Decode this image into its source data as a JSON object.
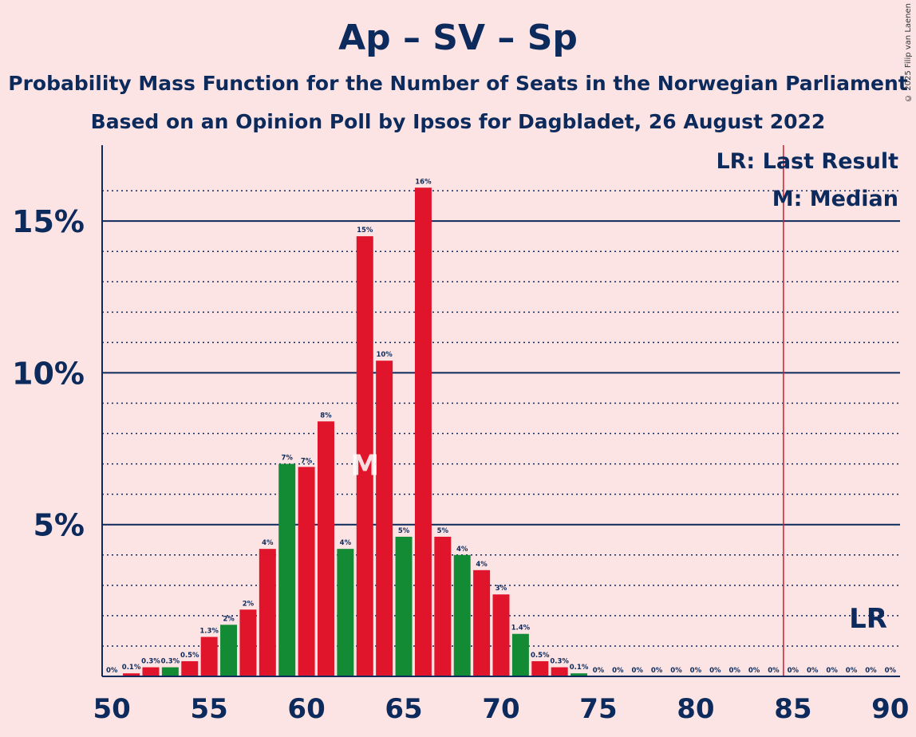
{
  "title": "Ap – SV – Sp",
  "subtitle1": "Probability Mass Function for the Number of Seats in the Norwegian Parliament",
  "subtitle2": "Based on an Opinion Poll by Ipsos for Dagbladet, 26 August 2022",
  "copyright": "© 2025 Filip van Laenen",
  "legend": {
    "lr": "LR: Last Result",
    "m": "M: Median"
  },
  "chart_data": {
    "type": "bar",
    "x": [
      50,
      51,
      52,
      53,
      54,
      55,
      56,
      57,
      58,
      59,
      60,
      61,
      62,
      63,
      64,
      65,
      66,
      67,
      68,
      69,
      70,
      71,
      72,
      73,
      74,
      75,
      76,
      77,
      78,
      79,
      80,
      81,
      82,
      83,
      84,
      85,
      86,
      87,
      88,
      89,
      90
    ],
    "values": [
      0,
      0.1,
      0.3,
      0.3,
      0.5,
      1.3,
      1.7,
      2.2,
      4.2,
      7.0,
      6.9,
      8.4,
      4.2,
      14.5,
      10.4,
      4.6,
      16.1,
      4.6,
      4.0,
      3.5,
      2.7,
      1.4,
      0.5,
      0.3,
      0.1,
      0,
      0,
      0,
      0,
      0,
      0,
      0,
      0,
      0,
      0,
      0,
      0,
      0,
      0,
      0,
      0
    ],
    "labels": [
      "0%",
      "0.1%",
      "0.3%",
      "0.3%",
      "0.5%",
      "1.3%",
      "2%",
      "2%",
      "4%",
      "7%",
      "7%",
      "8%",
      "4%",
      "15%",
      "10%",
      "5%",
      "16%",
      "5%",
      "4%",
      "4%",
      "3%",
      "1.4%",
      "0.5%",
      "0.3%",
      "0.1%",
      "0%",
      "0%",
      "0%",
      "0%",
      "0%",
      "0%",
      "0%",
      "0%",
      "0%",
      "0%",
      "0%",
      "0%",
      "0%",
      "0%",
      "0%",
      "0%"
    ],
    "colors": [
      "#e0142a",
      "#e0142a",
      "#e0142a",
      "#138a34",
      "#e0142a",
      "#e0142a",
      "#138a34",
      "#e0142a",
      "#e0142a",
      "#138a34",
      "#e0142a",
      "#e0142a",
      "#138a34",
      "#e0142a",
      "#e0142a",
      "#138a34",
      "#e0142a",
      "#e0142a",
      "#138a34",
      "#e0142a",
      "#e0142a",
      "#138a34",
      "#e0142a",
      "#e0142a",
      "#138a34",
      "#e0142a",
      "#e0142a",
      "#e0142a",
      "#e0142a",
      "#e0142a",
      "#e0142a",
      "#e0142a",
      "#e0142a",
      "#e0142a",
      "#e0142a",
      "#e0142a",
      "#e0142a",
      "#e0142a",
      "#e0142a",
      "#e0142a",
      "#e0142a"
    ],
    "xticks": [
      50,
      55,
      60,
      65,
      70,
      75,
      80,
      85,
      90
    ],
    "xtick_labels": [
      "50",
      "55",
      "60",
      "65",
      "70",
      "75",
      "80",
      "85",
      "90"
    ],
    "ymajor": [
      5,
      10,
      15
    ],
    "ytick_labels": [
      "5%",
      "10%",
      "15%"
    ],
    "ylim": [
      0,
      17.5
    ],
    "xlim": [
      49.5,
      90.5
    ],
    "median": 63,
    "median_label": "M",
    "last_result": 85,
    "last_result_label": "LR",
    "grid": "dotted minor every 1%, solid major every 5%"
  }
}
